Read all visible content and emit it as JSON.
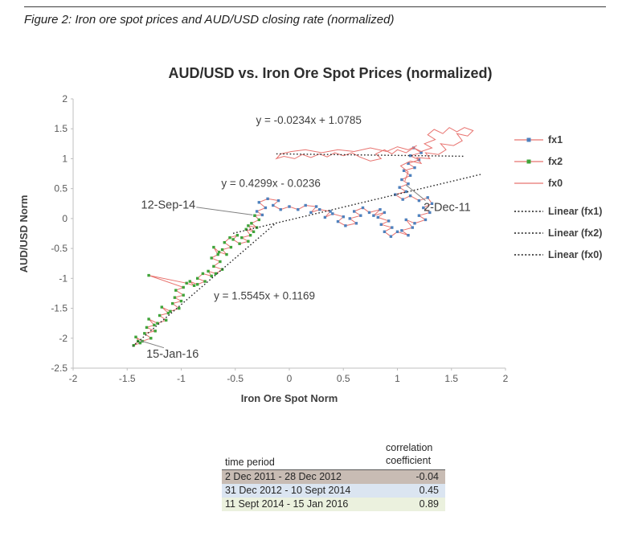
{
  "figure_caption": "Figure 2: Iron ore spot prices and AUD/USD closing rate (normalized)",
  "chart_data": {
    "type": "scatter",
    "title": "AUD/USD vs. Iron Ore Spot Prices (normalized)",
    "xlabel": "Iron Ore Spot Norm",
    "ylabel": "AUD/USD Norm",
    "xlim": [
      -2,
      2
    ],
    "ylim": [
      -2.5,
      2
    ],
    "x_ticks": [
      -2,
      -1.5,
      -1,
      -0.5,
      0,
      0.5,
      1,
      1.5,
      2
    ],
    "y_ticks": [
      2,
      1.5,
      1,
      0.5,
      0,
      -0.5,
      -1,
      -1.5,
      -2,
      -2.5
    ],
    "grid": false,
    "legend_position": "right",
    "series": [
      {
        "name": "fx1",
        "line_color": "#e8736f",
        "marker_color": "#4f81bd",
        "marker": "square",
        "points": [
          [
            1.15,
            1.18
          ],
          [
            1.22,
            1.1
          ],
          [
            1.12,
            1.05
          ],
          [
            1.2,
            0.98
          ],
          [
            1.1,
            0.92
          ],
          [
            1.16,
            0.85
          ],
          [
            1.06,
            0.8
          ],
          [
            1.12,
            0.72
          ],
          [
            1.04,
            0.65
          ],
          [
            1.1,
            0.58
          ],
          [
            1.02,
            0.52
          ],
          [
            1.08,
            0.45
          ],
          [
            0.98,
            0.4
          ],
          [
            1.05,
            0.32
          ],
          [
            1.12,
            0.38
          ],
          [
            1.2,
            0.3
          ],
          [
            1.28,
            0.35
          ],
          [
            1.32,
            0.25
          ],
          [
            1.24,
            0.18
          ],
          [
            1.3,
            0.1
          ],
          [
            1.2,
            0.05
          ],
          [
            1.26,
            -0.02
          ],
          [
            1.16,
            -0.08
          ],
          [
            1.08,
            -0.02
          ],
          [
            1.14,
            -0.15
          ],
          [
            1.04,
            -0.2
          ],
          [
            1.1,
            -0.28
          ],
          [
            1.0,
            -0.22
          ],
          [
            0.94,
            -0.3
          ],
          [
            0.88,
            -0.22
          ],
          [
            0.95,
            -0.15
          ],
          [
            0.85,
            -0.1
          ],
          [
            0.92,
            -0.04
          ],
          [
            0.82,
            0.02
          ],
          [
            0.88,
            0.1
          ],
          [
            0.78,
            0.05
          ],
          [
            0.84,
            0.15
          ],
          [
            0.74,
            0.1
          ],
          [
            0.68,
            0.18
          ],
          [
            0.6,
            0.12
          ],
          [
            0.66,
            0.05
          ],
          [
            0.56,
            0.0
          ],
          [
            0.62,
            -0.08
          ],
          [
            0.52,
            -0.12
          ],
          [
            0.45,
            -0.05
          ],
          [
            0.5,
            0.03
          ],
          [
            0.4,
            0.08
          ],
          [
            0.33,
            0.02
          ],
          [
            0.38,
            0.12
          ],
          [
            0.28,
            0.15
          ],
          [
            0.2,
            0.1
          ],
          [
            0.25,
            0.2
          ],
          [
            0.15,
            0.22
          ],
          [
            0.08,
            0.15
          ],
          [
            0.0,
            0.2
          ],
          [
            -0.08,
            0.15
          ],
          [
            -0.15,
            0.22
          ],
          [
            -0.1,
            0.3
          ],
          [
            -0.2,
            0.33
          ],
          [
            -0.28,
            0.27
          ],
          [
            -0.22,
            0.18
          ],
          [
            -0.3,
            0.12
          ],
          [
            -0.25,
            0.06
          ],
          [
            -0.32,
            0.05
          ]
        ]
      },
      {
        "name": "fx2",
        "line_color": "#e8736f",
        "marker_color": "#3fa43a",
        "marker": "square",
        "points": [
          [
            -0.32,
            0.05
          ],
          [
            -0.28,
            -0.02
          ],
          [
            -0.35,
            -0.08
          ],
          [
            -0.3,
            -0.15
          ],
          [
            -0.38,
            -0.12
          ],
          [
            -0.33,
            -0.22
          ],
          [
            -0.4,
            -0.18
          ],
          [
            -0.36,
            -0.28
          ],
          [
            -0.44,
            -0.32
          ],
          [
            -0.38,
            -0.38
          ],
          [
            -0.46,
            -0.42
          ],
          [
            -0.52,
            -0.35
          ],
          [
            -0.48,
            -0.28
          ],
          [
            -0.55,
            -0.32
          ],
          [
            -0.6,
            -0.4
          ],
          [
            -0.54,
            -0.48
          ],
          [
            -0.62,
            -0.52
          ],
          [
            -0.58,
            -0.6
          ],
          [
            -0.65,
            -0.56
          ],
          [
            -0.7,
            -0.48
          ],
          [
            -0.66,
            -0.6
          ],
          [
            -0.72,
            -0.66
          ],
          [
            -0.64,
            -0.72
          ],
          [
            -0.7,
            -0.8
          ],
          [
            -0.62,
            -0.85
          ],
          [
            -0.68,
            -0.92
          ],
          [
            -0.75,
            -0.88
          ],
          [
            -0.72,
            -0.96
          ],
          [
            -0.8,
            -0.92
          ],
          [
            -0.85,
            -1.0
          ],
          [
            -0.78,
            -1.05
          ],
          [
            -0.85,
            -1.1
          ],
          [
            -0.92,
            -1.05
          ],
          [
            -0.88,
            -1.12
          ],
          [
            -0.95,
            -1.08
          ],
          [
            -1.3,
            -0.95
          ],
          [
            -0.98,
            -1.15
          ],
          [
            -1.05,
            -1.2
          ],
          [
            -0.98,
            -1.28
          ],
          [
            -1.06,
            -1.32
          ],
          [
            -1.0,
            -1.38
          ],
          [
            -1.08,
            -1.42
          ],
          [
            -1.02,
            -1.5
          ],
          [
            -1.1,
            -1.55
          ],
          [
            -1.18,
            -1.48
          ],
          [
            -1.12,
            -1.58
          ],
          [
            -1.2,
            -1.62
          ],
          [
            -1.14,
            -1.7
          ],
          [
            -1.22,
            -1.75
          ],
          [
            -1.3,
            -1.68
          ],
          [
            -1.25,
            -1.78
          ],
          [
            -1.32,
            -1.82
          ],
          [
            -1.24,
            -1.88
          ],
          [
            -1.34,
            -1.92
          ],
          [
            -1.28,
            -2.0
          ],
          [
            -1.36,
            -2.05
          ],
          [
            -1.42,
            -1.98
          ],
          [
            -1.38,
            -2.08
          ],
          [
            -1.44,
            -2.12
          ],
          [
            -1.4,
            -2.05
          ]
        ]
      },
      {
        "name": "fx0",
        "line_color": "#e8736f",
        "marker_color": null,
        "marker": "none",
        "points": [
          [
            1.07,
            0.63
          ],
          [
            1.1,
            0.78
          ],
          [
            1.03,
            0.88
          ],
          [
            1.12,
            0.96
          ],
          [
            1.22,
            0.92
          ],
          [
            1.18,
            1.02
          ],
          [
            1.3,
            1.0
          ],
          [
            1.26,
            1.1
          ],
          [
            1.38,
            1.07
          ],
          [
            1.45,
            1.15
          ],
          [
            1.4,
            1.25
          ],
          [
            1.52,
            1.22
          ],
          [
            1.6,
            1.3
          ],
          [
            1.55,
            1.42
          ],
          [
            1.65,
            1.38
          ],
          [
            1.7,
            1.47
          ],
          [
            1.62,
            1.52
          ],
          [
            1.55,
            1.45
          ],
          [
            1.48,
            1.52
          ],
          [
            1.42,
            1.42
          ],
          [
            1.34,
            1.49
          ],
          [
            1.28,
            1.4
          ],
          [
            1.35,
            1.32
          ],
          [
            1.25,
            1.25
          ],
          [
            1.32,
            1.18
          ],
          [
            1.22,
            1.12
          ],
          [
            1.15,
            1.18
          ],
          [
            1.08,
            1.1
          ],
          [
            1.0,
            1.15
          ],
          [
            0.95,
            1.08
          ],
          [
            0.88,
            1.15
          ],
          [
            0.8,
            1.08
          ],
          [
            0.85,
            1.0
          ],
          [
            0.75,
            0.96
          ],
          [
            0.65,
            1.03
          ],
          [
            0.58,
            1.1
          ],
          [
            0.5,
            1.05
          ],
          [
            0.42,
            1.1
          ],
          [
            0.35,
            1.03
          ],
          [
            0.28,
            1.08
          ],
          [
            0.2,
            1.02
          ],
          [
            0.12,
            1.07
          ],
          [
            0.05,
            1.0
          ],
          [
            -0.05,
            1.04
          ],
          [
            -0.12,
            1.0
          ],
          [
            -0.08,
            1.08
          ],
          [
            0.02,
            1.12
          ],
          [
            0.15,
            1.15
          ],
          [
            0.3,
            1.1
          ],
          [
            0.45,
            1.15
          ],
          [
            0.6,
            1.12
          ],
          [
            0.75,
            1.18
          ],
          [
            0.9,
            1.12
          ],
          [
            1.0,
            1.2
          ],
          [
            1.1,
            1.15
          ],
          [
            1.18,
            1.22
          ]
        ]
      }
    ],
    "trendlines": [
      {
        "name": "Linear (fx1)",
        "equation": "y = 0.4299x - 0.0236",
        "slope": 0.4299,
        "intercept": -0.0236,
        "x_range": [
          -0.52,
          1.78
        ]
      },
      {
        "name": "Linear (fx2)",
        "equation": "y = 1.5545x + 0.1169",
        "slope": 1.5545,
        "intercept": 0.1169,
        "x_range": [
          -1.45,
          -0.12
        ]
      },
      {
        "name": "Linear (fx0)",
        "equation": "y = -0.0234x + 1.0785",
        "slope": -0.0234,
        "intercept": 1.0785,
        "x_range": [
          -0.12,
          1.62
        ]
      }
    ],
    "annotations": [
      {
        "kind": "equation",
        "text": "y = -0.0234x + 1.0785",
        "x": 0.18,
        "y": 1.64
      },
      {
        "kind": "equation",
        "text": "y = 0.4299x - 0.0236",
        "x": -0.17,
        "y": 0.58
      },
      {
        "kind": "equation",
        "text": "y = 1.5545x + 0.1169",
        "x": -0.23,
        "y": -1.3
      },
      {
        "kind": "date",
        "text": "12-Sep-14",
        "x": -1.12,
        "y": 0.22,
        "callout": [
          [
            -0.86,
            0.19
          ],
          [
            -0.34,
            0.06
          ]
        ]
      },
      {
        "kind": "date",
        "text": "2-Dec-11",
        "x": 1.46,
        "y": 0.18,
        "callout": [
          [
            1.26,
            0.3
          ],
          [
            1.08,
            0.56
          ]
        ]
      },
      {
        "kind": "date",
        "text": "15-Jan-16",
        "x": -1.08,
        "y": -2.27,
        "callout": [
          [
            -1.16,
            -2.16
          ],
          [
            -1.38,
            -2.04
          ]
        ]
      }
    ],
    "legend": [
      {
        "label": "fx1",
        "style": "line-marker",
        "line_color": "#e8736f",
        "marker_color": "#4f81bd"
      },
      {
        "label": "fx2",
        "style": "line-marker",
        "line_color": "#e8736f",
        "marker_color": "#3fa43a"
      },
      {
        "label": "fx0",
        "style": "line",
        "line_color": "#e8736f"
      },
      {
        "label": "Linear (fx1)",
        "style": "dotted",
        "line_color": "#1a1a1a"
      },
      {
        "label": "Linear (fx2)",
        "style": "dotted",
        "line_color": "#1a1a1a"
      },
      {
        "label": "Linear (fx0)",
        "style": "dotted",
        "line_color": "#1a1a1a"
      }
    ]
  },
  "table": {
    "header_period": "time period",
    "header_value": "correlation coefficient",
    "rows": [
      {
        "period": "2 Dec 2011 - 28 Dec 2012",
        "value": "-0.04",
        "color": "#c8bcb4"
      },
      {
        "period": "31 Dec 2012 - 10 Sept 2014",
        "value": "0.45",
        "color": "#dbe5f1"
      },
      {
        "period": "11 Sept 2014 - 15 Jan 2016",
        "value": "0.89",
        "color": "#ebf1de"
      }
    ]
  }
}
